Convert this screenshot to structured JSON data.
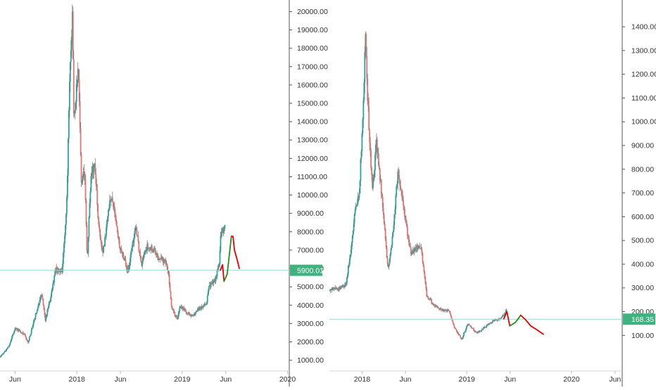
{
  "colors": {
    "up": "#26a69a",
    "down": "#e57373",
    "wick": "#7a7a7a",
    "drawing_up": "#1e8f1e",
    "drawing_down": "#e00000",
    "price_line": "#9fd9cf",
    "badge": "#3fb27f",
    "axis": "#555555"
  },
  "chart_data": [
    {
      "type": "candlestick",
      "title": "",
      "scale": "linear",
      "grid": false,
      "x_labels": [
        "Jun",
        "2018",
        "Jun",
        "2019",
        "Jun",
        "2020"
      ],
      "x_tick_dates": [
        "2017-06-01",
        "2018-01-01",
        "2018-06-01",
        "2019-01-01",
        "2019-06-01",
        "2020-01-01"
      ],
      "y_ticks": [
        "1000.00",
        "2000.00",
        "3000.00",
        "4000.00",
        "5000.00",
        "6000.00",
        "7000.00",
        "8000.00",
        "9000.00",
        "10000.00",
        "11000.00",
        "12000.00",
        "13000.00",
        "14000.00",
        "15000.00",
        "16000.00",
        "17000.00",
        "18000.00",
        "19000.00",
        "20000.00"
      ],
      "xlim": [
        "2017-04-10",
        "2020-01-07"
      ],
      "ylim": [
        410,
        20400
      ],
      "last_price": "5900.01",
      "price_path": [
        [
          "2017-04-10",
          1180
        ],
        [
          "2017-05-10",
          1750
        ],
        [
          "2017-06-01",
          2750
        ],
        [
          "2017-07-01",
          2450
        ],
        [
          "2017-07-16",
          1950
        ],
        [
          "2017-08-10",
          3400
        ],
        [
          "2017-09-01",
          4700
        ],
        [
          "2017-09-14",
          3200
        ],
        [
          "2017-10-01",
          4300
        ],
        [
          "2017-10-20",
          6000
        ],
        [
          "2017-11-12",
          5900
        ],
        [
          "2017-11-28",
          9800
        ],
        [
          "2017-12-07",
          16500
        ],
        [
          "2017-12-17",
          19700
        ],
        [
          "2017-12-22",
          13800
        ],
        [
          "2018-01-06",
          17000
        ],
        [
          "2018-01-17",
          10500
        ],
        [
          "2018-01-28",
          11500
        ],
        [
          "2018-02-06",
          6400
        ],
        [
          "2018-02-20",
          11400
        ],
        [
          "2018-03-05",
          11500
        ],
        [
          "2018-03-18",
          8200
        ],
        [
          "2018-04-01",
          6800
        ],
        [
          "2018-04-24",
          9500
        ],
        [
          "2018-05-05",
          9800
        ],
        [
          "2018-05-28",
          7300
        ],
        [
          "2018-06-12",
          6600
        ],
        [
          "2018-06-28",
          5900
        ],
        [
          "2018-07-24",
          8300
        ],
        [
          "2018-08-12",
          6200
        ],
        [
          "2018-09-05",
          7300
        ],
        [
          "2018-10-10",
          6600
        ],
        [
          "2018-11-05",
          6400
        ],
        [
          "2018-11-15",
          5600
        ],
        [
          "2018-11-25",
          3900
        ],
        [
          "2018-12-15",
          3200
        ],
        [
          "2018-12-25",
          4000
        ],
        [
          "2019-01-15",
          3600
        ],
        [
          "2019-02-08",
          3400
        ],
        [
          "2019-02-25",
          3800
        ],
        [
          "2019-03-25",
          4000
        ],
        [
          "2019-04-03",
          5000
        ],
        [
          "2019-04-25",
          5400
        ],
        [
          "2019-05-10",
          6300
        ],
        [
          "2019-05-14",
          7700
        ],
        [
          "2019-05-22",
          7950
        ],
        [
          "2019-05-31",
          8500
        ]
      ],
      "drawing": [
        {
          "trend": "down",
          "points": [
            [
              "2019-05-13",
              5900
            ],
            [
              "2019-05-21",
              6200
            ],
            [
              "2019-05-26",
              5300
            ]
          ]
        },
        {
          "trend": "up",
          "points": [
            [
              "2019-05-26",
              5300
            ],
            [
              "2019-06-06",
              5700
            ],
            [
              "2019-06-20",
              7700
            ]
          ]
        },
        {
          "trend": "down",
          "points": [
            [
              "2019-06-20",
              7750
            ],
            [
              "2019-06-26",
              7750
            ],
            [
              "2019-07-01",
              7000
            ],
            [
              "2019-07-10",
              6500
            ],
            [
              "2019-07-18",
              6000
            ]
          ]
        }
      ]
    },
    {
      "type": "candlestick",
      "title": "",
      "scale": "linear",
      "grid": false,
      "x_labels": [
        "2018",
        "Jun",
        "2019",
        "Jun",
        "2020",
        "Jun"
      ],
      "x_tick_dates": [
        "2018-01-01",
        "2018-06-01",
        "2019-01-01",
        "2019-06-01",
        "2020-01-01",
        "2020-06-01"
      ],
      "y_ticks": [
        "100.00",
        "200.00",
        "300.00",
        "400.00",
        "500.00",
        "600.00",
        "700.00",
        "800.00",
        "900.00",
        "1000.00",
        "1100.00",
        "1200.00",
        "1300.00",
        "1400.00"
      ],
      "xlim": [
        "2017-09-09",
        "2020-06-26"
      ],
      "ylim": [
        -50,
        1495
      ],
      "last_price": "168.35",
      "price_path": [
        [
          "2017-09-09",
          290
        ],
        [
          "2017-10-15",
          300
        ],
        [
          "2017-11-05",
          310
        ],
        [
          "2017-11-25",
          480
        ],
        [
          "2017-12-10",
          650
        ],
        [
          "2017-12-22",
          700
        ],
        [
          "2018-01-05",
          1050
        ],
        [
          "2018-01-13",
          1400
        ],
        [
          "2018-01-20",
          1100
        ],
        [
          "2018-02-06",
          700
        ],
        [
          "2018-02-20",
          920
        ],
        [
          "2018-03-10",
          700
        ],
        [
          "2018-04-01",
          380
        ],
        [
          "2018-04-18",
          520
        ],
        [
          "2018-05-06",
          800
        ],
        [
          "2018-06-01",
          580
        ],
        [
          "2018-06-20",
          450
        ],
        [
          "2018-07-24",
          480
        ],
        [
          "2018-08-14",
          270
        ],
        [
          "2018-09-05",
          230
        ],
        [
          "2018-10-01",
          210
        ],
        [
          "2018-11-01",
          200
        ],
        [
          "2018-11-20",
          130
        ],
        [
          "2018-12-14",
          85
        ],
        [
          "2019-01-05",
          150
        ],
        [
          "2019-02-05",
          110
        ],
        [
          "2019-03-05",
          135
        ],
        [
          "2019-04-01",
          160
        ],
        [
          "2019-04-25",
          170
        ],
        [
          "2019-05-10",
          185
        ],
        [
          "2019-05-20",
          210
        ]
      ],
      "drawing": [
        {
          "trend": "down",
          "points": [
            [
              "2019-05-10",
              170
            ],
            [
              "2019-05-21",
              200
            ],
            [
              "2019-05-31",
              140
            ]
          ]
        },
        {
          "trend": "up",
          "points": [
            [
              "2019-05-31",
              140
            ],
            [
              "2019-06-20",
              155
            ],
            [
              "2019-07-08",
              185
            ]
          ]
        },
        {
          "trend": "down",
          "points": [
            [
              "2019-07-08",
              185
            ],
            [
              "2019-07-26",
              165
            ],
            [
              "2019-08-12",
              140
            ],
            [
              "2019-09-01",
              125
            ],
            [
              "2019-09-25",
              105
            ]
          ]
        }
      ]
    }
  ]
}
